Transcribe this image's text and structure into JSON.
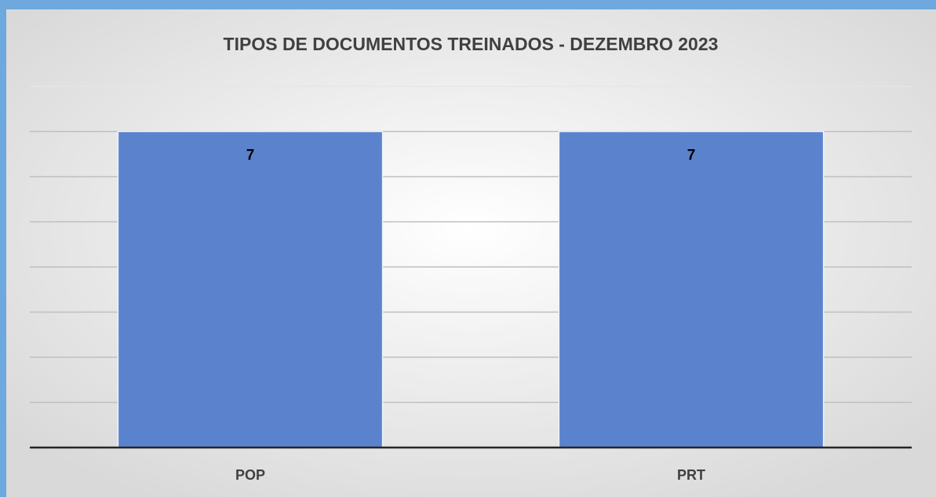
{
  "chart_data": {
    "type": "bar",
    "title": "TIPOS DE DOCUMENTOS TREINADOS - DEZEMBRO 2023",
    "categories": [
      "POP",
      "PRT"
    ],
    "values": [
      7,
      7
    ],
    "color": "#5b83cd",
    "ylim": [
      0,
      8
    ],
    "yticks": [
      0,
      1,
      2,
      3,
      4,
      5,
      6,
      7,
      8
    ],
    "grid": true
  }
}
